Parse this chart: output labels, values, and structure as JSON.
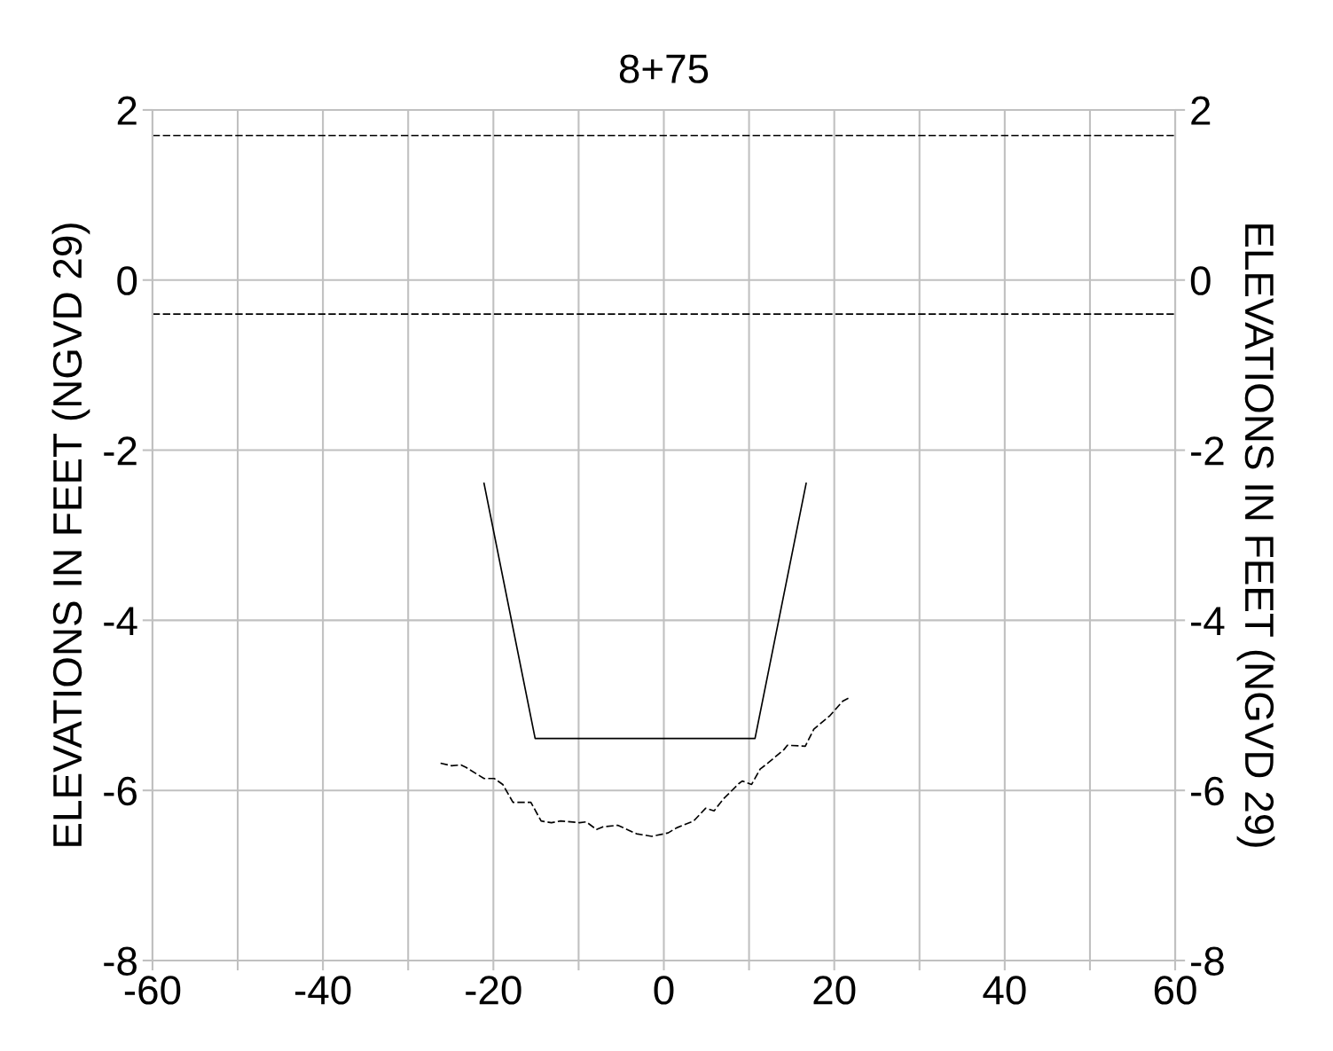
{
  "chart_data": {
    "type": "line",
    "title": "8+75",
    "ylabel": "ELEVATIONS IN FEET (NGVD 29)",
    "y2label": "ELEVATIONS IN FEET (NGVD 29)",
    "xlim": [
      -60,
      60
    ],
    "xticks": [
      -60,
      {
        "value": -50,
        "label": null
      },
      -40,
      {
        "value": -30,
        "label": null
      },
      -20,
      {
        "value": -10,
        "label": null
      },
      0,
      {
        "value": 10,
        "label": null
      },
      20,
      {
        "value": 30,
        "label": null
      },
      40,
      {
        "value": 50,
        "label": null
      },
      60
    ],
    "ylim": [
      -8,
      2
    ],
    "yticks": [
      -8,
      -6,
      -4,
      -2,
      0,
      2
    ],
    "y2lim": [
      -8,
      2
    ],
    "y2ticks": [
      -8,
      -6,
      -4,
      -2,
      0,
      2
    ],
    "grid": true,
    "series": [
      {
        "color": "#000000",
        "line_style": "solid",
        "x": [
          -21.1,
          -15.1,
          10.7,
          16.7
        ],
        "values": [
          -2.39,
          -5.39,
          -5.39,
          -2.39
        ]
      },
      {
        "color": "#000000",
        "line_style": "dashed",
        "x": [
          -26.2,
          -24.9,
          -23.8,
          -23.2,
          -21.1,
          -19.9,
          -18.9,
          -17.7,
          -15.6,
          -14.4,
          -13.2,
          -12.1,
          -9.9,
          -9.1,
          -7.9,
          -7.2,
          -5.4,
          -3.2,
          -1.4,
          0.5,
          1.5,
          3.5,
          4.9,
          5.9,
          7.0,
          8.8,
          9.2,
          10.3,
          11.3,
          12.2,
          14.1,
          14.5,
          16.6,
          17.6,
          19.5,
          21.0,
          21.8
        ],
        "values": [
          -5.68,
          -5.71,
          -5.7,
          -5.73,
          -5.86,
          -5.86,
          -5.93,
          -6.14,
          -6.14,
          -6.36,
          -6.38,
          -6.36,
          -6.38,
          -6.37,
          -6.46,
          -6.43,
          -6.41,
          -6.51,
          -6.54,
          -6.5,
          -6.44,
          -6.36,
          -6.21,
          -6.24,
          -6.1,
          -5.92,
          -5.89,
          -5.93,
          -5.75,
          -5.68,
          -5.52,
          -5.47,
          -5.48,
          -5.28,
          -5.12,
          -4.95,
          -4.91
        ]
      }
    ],
    "ref_lines": [
      {
        "axis": "y",
        "value": 1.7,
        "color": "#000000",
        "line_style": "dashed"
      },
      {
        "axis": "y",
        "value": -0.4,
        "color": "#000000",
        "line_style": "dashed"
      }
    ]
  }
}
